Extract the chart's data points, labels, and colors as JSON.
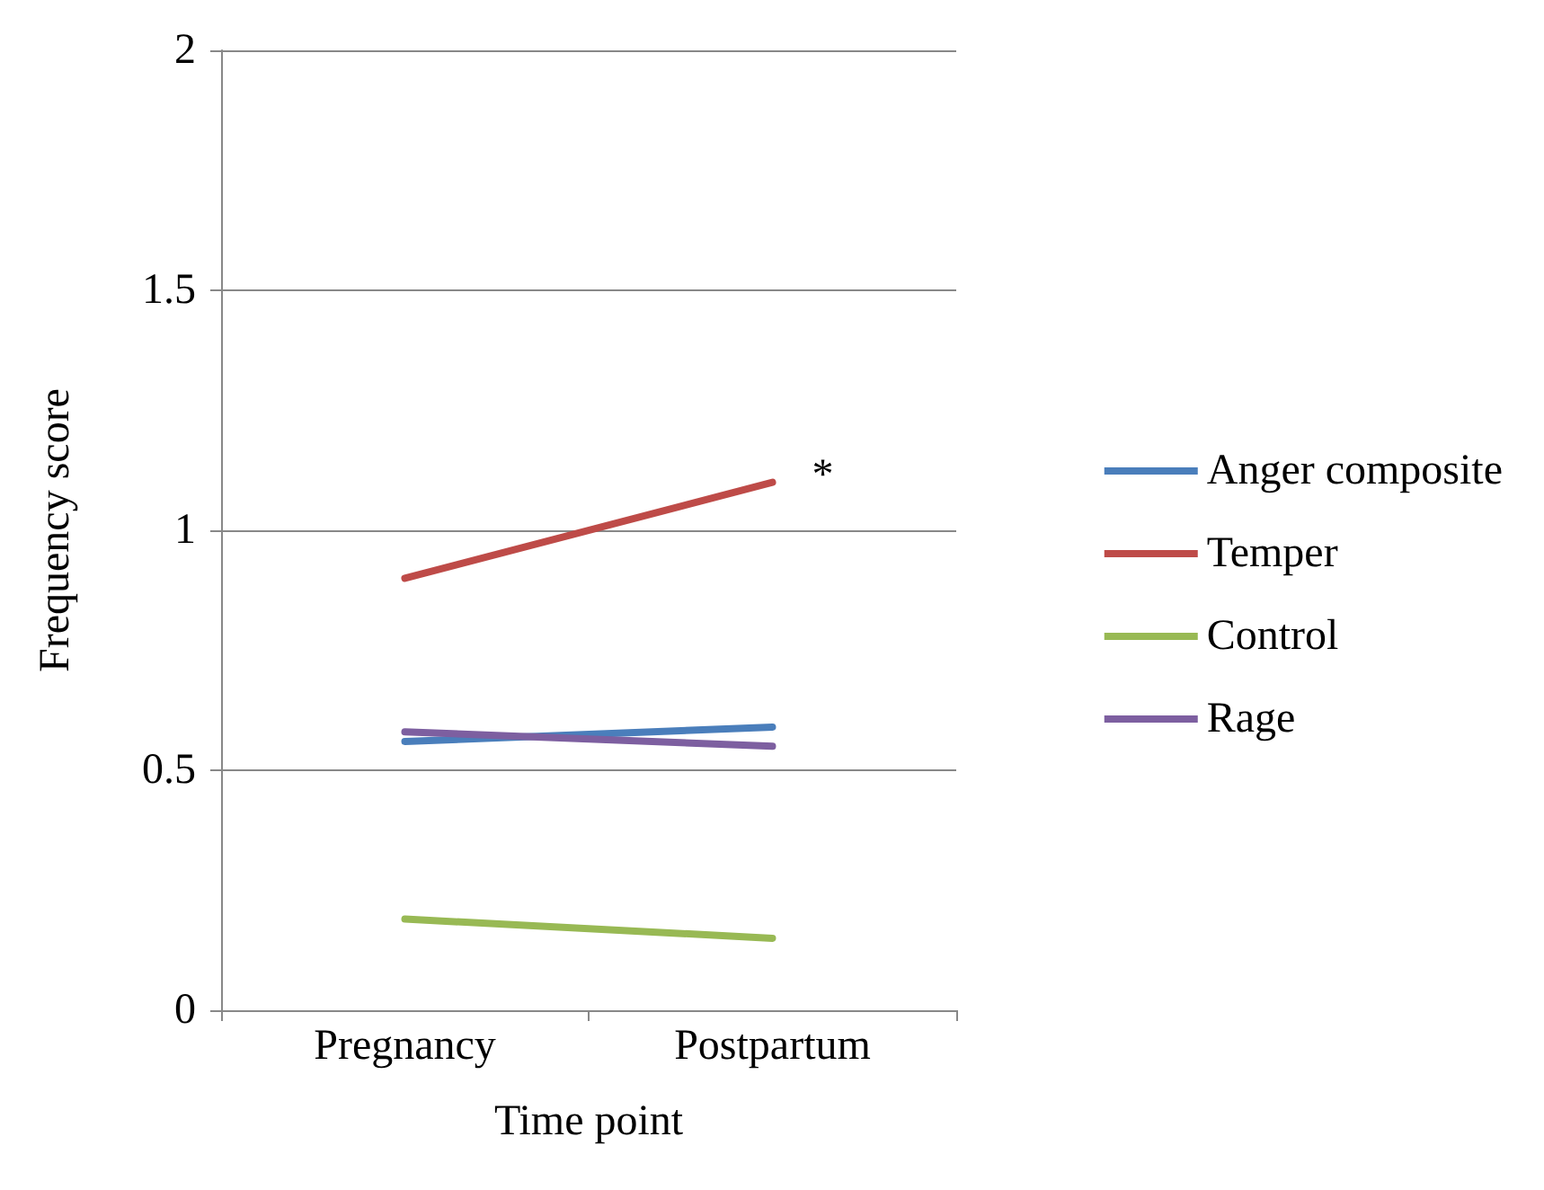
{
  "chart_data": {
    "type": "line",
    "xlabel": "Time point",
    "ylabel": "Frequency score",
    "categories": [
      "Pregnancy",
      "Postpartum"
    ],
    "series": [
      {
        "name": "Anger composite",
        "color": "#4a7ebb",
        "values": [
          0.56,
          0.59
        ]
      },
      {
        "name": "Temper",
        "color": "#be4b48",
        "values": [
          0.9,
          1.1
        ]
      },
      {
        "name": "Control",
        "color": "#98b954",
        "values": [
          0.19,
          0.15
        ]
      },
      {
        "name": "Rage",
        "color": "#7d5fa0",
        "values": [
          0.58,
          0.55
        ]
      }
    ],
    "ylim": [
      0,
      2
    ],
    "yticks": [
      0,
      0.5,
      1,
      1.5,
      2
    ],
    "grid": "y",
    "legend": "right",
    "marker": "none",
    "line_style": "solid",
    "annotations": [
      {
        "text": "*",
        "x": "Postpartum",
        "y": 1.1
      }
    ]
  }
}
